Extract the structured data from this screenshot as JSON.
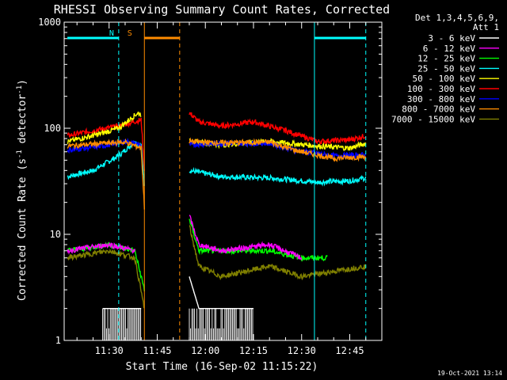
{
  "chart_data": {
    "type": "line",
    "title": "RHESSI Observing Summary Count Rates, Corrected",
    "xlabel": "Start Time (16-Sep-02 11:15:22)",
    "ylabel_main": "Corrected Count Rate (s",
    "ylabel_sup1": "-1",
    "ylabel_mid": " detector",
    "ylabel_sup2": "-1",
    "ylabel_end": ")",
    "yscale": "log",
    "ylim": [
      1,
      1000
    ],
    "xlim": [
      "11:16",
      "12:55"
    ],
    "x_ticks": [
      "11:30",
      "11:45",
      "12:00",
      "12:15",
      "12:30",
      "12:45"
    ],
    "y_ticks": [
      "1",
      "10",
      "100",
      "1000"
    ],
    "legend_header": [
      "Det 1,3,4,5,6,9,",
      "Att 1"
    ],
    "timestamp": "19-Oct-2021 13:14",
    "flags": [
      {
        "label": "N",
        "color": "#00ffff",
        "bars": [
          [
            "11:17",
            "11:33"
          ],
          [
            "12:34",
            "12:50"
          ]
        ],
        "dashed": [
          "11:33",
          "12:50"
        ],
        "solid": [
          "12:34"
        ]
      },
      {
        "label": "S",
        "color": "#ff8c00",
        "bars": [
          [
            "11:41",
            "11:52"
          ]
        ],
        "dashed": [
          "11:52"
        ],
        "solid": [
          "11:41"
        ]
      }
    ],
    "gap": [
      "11:41",
      "11:54"
    ],
    "series": [
      {
        "name": "3 - 6 keV",
        "color": "#ffffff"
      },
      {
        "name": "6 - 12 keV",
        "color": "#ff00ff"
      },
      {
        "name": "12 - 25 keV",
        "color": "#00ff00"
      },
      {
        "name": "25 - 50 keV",
        "color": "#00ffff"
      },
      {
        "name": "50 - 100 keV",
        "color": "#ffff00"
      },
      {
        "name": "100 - 300 keV",
        "color": "#ff0000"
      },
      {
        "name": "300 - 800 keV",
        "color": "#0000ff"
      },
      {
        "name": "800 - 7000 keV",
        "color": "#ff8c00"
      },
      {
        "name": "7000 - 15000 keV",
        "color": "#808000"
      }
    ],
    "segments": [
      {
        "series": 3,
        "pts": [
          [
            "11:17",
            35
          ],
          [
            "11:25",
            40
          ],
          [
            "11:33",
            55
          ],
          [
            "11:38",
            75
          ],
          [
            "11:40",
            68
          ],
          [
            "11:41",
            30
          ]
        ]
      },
      {
        "series": 3,
        "pts": [
          [
            "11:55",
            40
          ],
          [
            "12:05",
            35
          ],
          [
            "12:20",
            34
          ],
          [
            "12:35",
            31
          ],
          [
            "12:45",
            32
          ],
          [
            "12:50",
            34
          ]
        ]
      },
      {
        "series": 5,
        "pts": [
          [
            "11:17",
            85
          ],
          [
            "11:25",
            95
          ],
          [
            "11:33",
            105
          ],
          [
            "11:40",
            120
          ],
          [
            "11:41",
            40
          ]
        ]
      },
      {
        "series": 5,
        "pts": [
          [
            "11:55",
            140
          ],
          [
            "11:58",
            115
          ],
          [
            "12:05",
            105
          ],
          [
            "12:15",
            115
          ],
          [
            "12:25",
            95
          ],
          [
            "12:35",
            75
          ],
          [
            "12:45",
            78
          ],
          [
            "12:50",
            85
          ]
        ]
      },
      {
        "series": 4,
        "pts": [
          [
            "11:17",
            75
          ],
          [
            "11:25",
            85
          ],
          [
            "11:33",
            100
          ],
          [
            "11:39",
            140
          ],
          [
            "11:40",
            135
          ]
        ]
      },
      {
        "series": 4,
        "pts": [
          [
            "11:55",
            75
          ],
          [
            "12:05",
            70
          ],
          [
            "12:20",
            75
          ],
          [
            "12:35",
            68
          ],
          [
            "12:45",
            65
          ],
          [
            "12:50",
            72
          ]
        ]
      },
      {
        "series": 6,
        "pts": [
          [
            "11:17",
            62
          ],
          [
            "11:28",
            68
          ],
          [
            "11:35",
            75
          ],
          [
            "11:40",
            70
          ]
        ]
      },
      {
        "series": 6,
        "pts": [
          [
            "11:55",
            70
          ],
          [
            "12:05",
            72
          ],
          [
            "12:20",
            72
          ],
          [
            "12:28",
            62
          ],
          [
            "12:40",
            55
          ],
          [
            "12:50",
            56
          ]
        ]
      },
      {
        "series": 7,
        "pts": [
          [
            "11:17",
            68
          ],
          [
            "11:28",
            72
          ],
          [
            "11:35",
            74
          ],
          [
            "11:40",
            65
          ],
          [
            "11:41",
            18
          ]
        ]
      },
      {
        "series": 7,
        "pts": [
          [
            "11:55",
            75
          ],
          [
            "12:05",
            73
          ],
          [
            "12:20",
            74
          ],
          [
            "12:28",
            62
          ],
          [
            "12:40",
            52
          ],
          [
            "12:50",
            54
          ]
        ]
      },
      {
        "series": 2,
        "pts": [
          [
            "11:17",
            7
          ],
          [
            "11:30",
            8
          ],
          [
            "11:38",
            7
          ],
          [
            "11:41",
            3
          ]
        ]
      },
      {
        "series": 2,
        "pts": [
          [
            "11:55",
            14
          ],
          [
            "11:58",
            7
          ],
          [
            "12:05",
            7
          ],
          [
            "12:20",
            7
          ],
          [
            "12:30",
            6
          ],
          [
            "12:38",
            6
          ]
        ]
      },
      {
        "series": 1,
        "pts": [
          [
            "11:17",
            7
          ],
          [
            "11:30",
            8
          ],
          [
            "11:38",
            7
          ]
        ]
      },
      {
        "series": 1,
        "pts": [
          [
            "11:55",
            15
          ],
          [
            "11:58",
            8
          ],
          [
            "12:05",
            7
          ],
          [
            "12:20",
            8
          ],
          [
            "12:30",
            6
          ]
        ]
      },
      {
        "series": 8,
        "pts": [
          [
            "11:17",
            6
          ],
          [
            "11:30",
            7
          ],
          [
            "11:38",
            6
          ],
          [
            "11:41",
            2
          ]
        ]
      },
      {
        "series": 8,
        "pts": [
          [
            "11:55",
            12
          ],
          [
            "11:58",
            5
          ],
          [
            "12:05",
            4
          ],
          [
            "12:20",
            5
          ],
          [
            "12:30",
            4
          ],
          [
            "12:50",
            5
          ]
        ]
      },
      {
        "series": 0,
        "pts": [
          [
            "11:28",
            2
          ],
          [
            "11:40",
            2
          ]
        ]
      },
      {
        "series": 0,
        "pts": [
          [
            "11:55",
            4
          ],
          [
            "11:58",
            2
          ],
          [
            "12:15",
            2
          ]
        ]
      }
    ]
  }
}
